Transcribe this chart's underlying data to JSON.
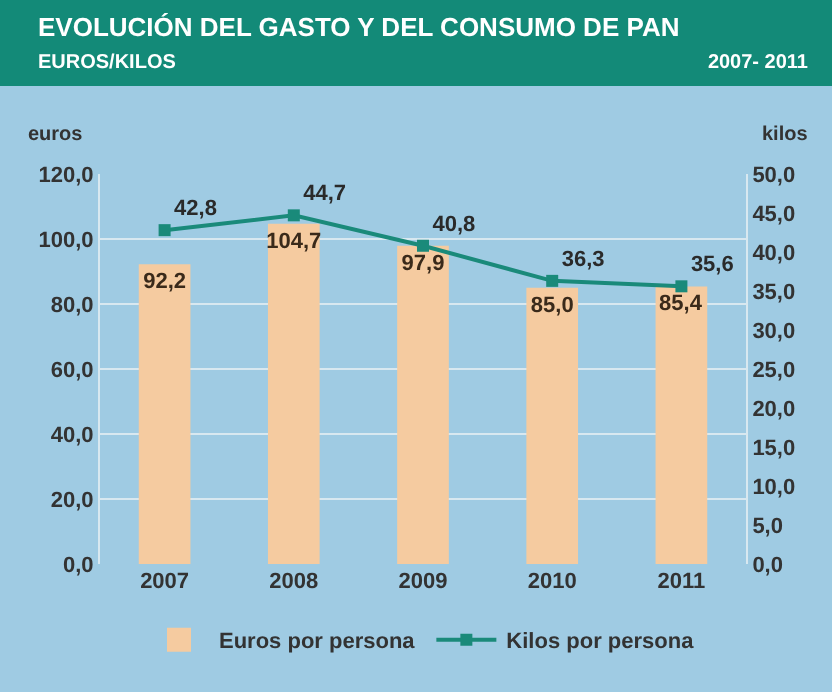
{
  "chart_data": {
    "type": "bar",
    "title": "EVOLUCIÓN DEL GASTO Y DEL CONSUMO DE PAN",
    "subtitle": "EUROS/KILOS",
    "annotations": [
      "2007- 2011"
    ],
    "ylabel": "euros",
    "y2label": "kilos",
    "categories": [
      "2007",
      "2008",
      "2009",
      "2010",
      "2011"
    ],
    "series": [
      {
        "name": "Euros por persona",
        "color": "#f5cba0",
        "values": [
          92.2,
          104.7,
          97.9,
          85.0,
          85.4
        ],
        "value_labels": [
          "92,2",
          "104,7",
          "97,9",
          "85,0",
          "85,4"
        ]
      },
      {
        "name": "Kilos por persona",
        "type": "line",
        "axis": "y2",
        "color": "#1a8a7a",
        "values": [
          42.8,
          44.7,
          40.8,
          36.3,
          35.6
        ],
        "value_labels": [
          "42,8",
          "44,7",
          "40,8",
          "36,3",
          "35,6"
        ]
      }
    ],
    "ylim": [
      0,
      120
    ],
    "yticks": [
      {
        "value": 0,
        "label": "0,0"
      },
      {
        "value": 20,
        "label": "20,0"
      },
      {
        "value": 40,
        "label": "40,0"
      },
      {
        "value": 60,
        "label": "60,0"
      },
      {
        "value": 80,
        "label": "80,0"
      },
      {
        "value": 100,
        "label": "100,0"
      },
      {
        "value": 120,
        "label": "120,0"
      }
    ],
    "y2lim": [
      0,
      50
    ],
    "y2ticks": [
      {
        "value": 0,
        "label": "0,0"
      },
      {
        "value": 5,
        "label": "5,0"
      },
      {
        "value": 10,
        "label": "10,0"
      },
      {
        "value": 15,
        "label": "15,0"
      },
      {
        "value": 20,
        "label": "20,0"
      },
      {
        "value": 25,
        "label": "25,0"
      },
      {
        "value": 30,
        "label": "30,0"
      },
      {
        "value": 35,
        "label": "35,0"
      },
      {
        "value": 40,
        "label": "40,0"
      },
      {
        "value": 45,
        "label": "45,0"
      },
      {
        "value": 50,
        "label": "50,0"
      }
    ],
    "grid": "y",
    "legend": "bottom",
    "marker": "square",
    "line_style": "solid"
  }
}
